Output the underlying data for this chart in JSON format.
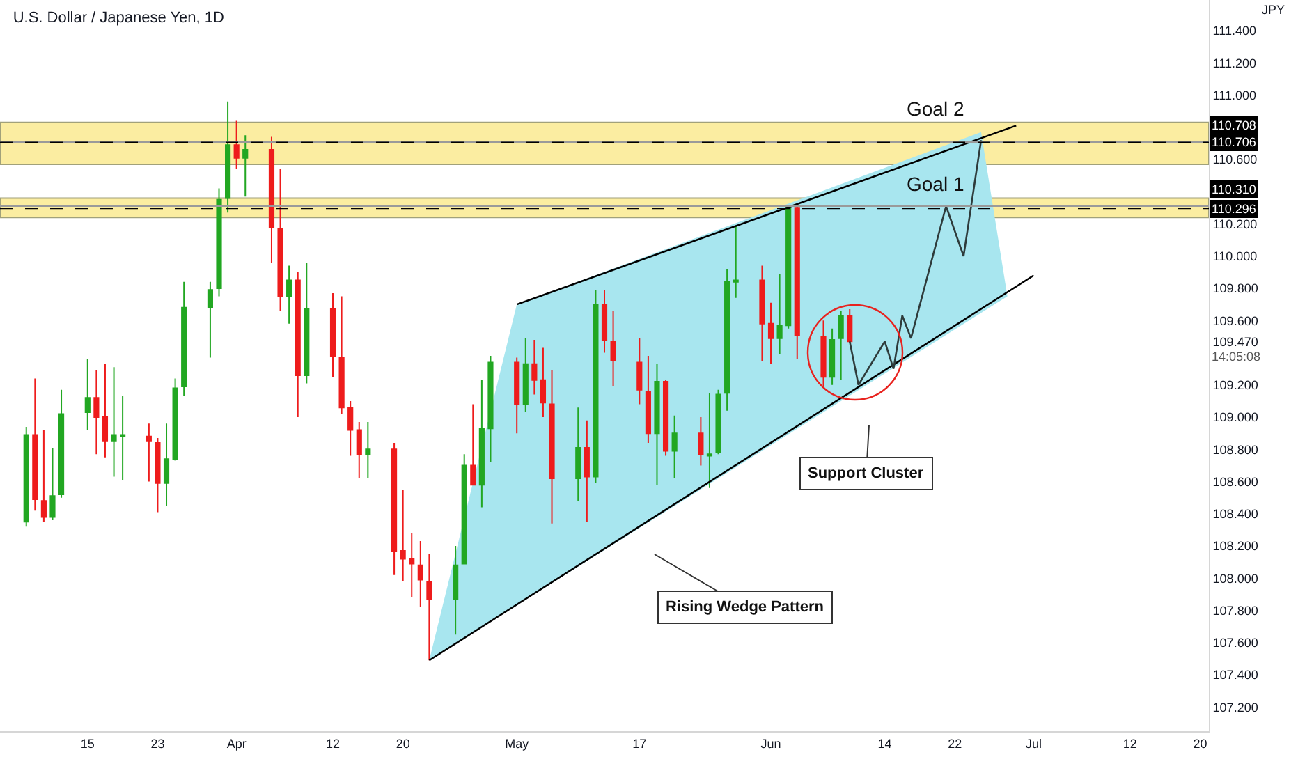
{
  "chart_data": {
    "type": "candlestick",
    "title": "U.S. Dollar / Japanese Yen, 1D",
    "ylabel": "JPY",
    "x": [
      "--03-08",
      "--03-09",
      "--03-10",
      "--03-11",
      "--03-12",
      "--03-15",
      "--03-16",
      "--03-17",
      "--03-18",
      "--03-19",
      "--03-22",
      "--03-23",
      "--03-24",
      "--03-25",
      "--03-26",
      "--03-29",
      "--03-30",
      "--03-31",
      "--04-01",
      "--04-02",
      "--04-05",
      "--04-06",
      "--04-07",
      "--04-08",
      "--04-09",
      "--04-12",
      "--04-13",
      "--04-14",
      "--04-15",
      "--04-16",
      "--04-19",
      "--04-20",
      "--04-21",
      "--04-22",
      "--04-23",
      "--04-26",
      "--04-27",
      "--04-28",
      "--04-29",
      "--04-30",
      "--05-03",
      "--05-04",
      "--05-05",
      "--05-06",
      "--05-07",
      "--05-10",
      "--05-11",
      "--05-12",
      "--05-13",
      "--05-14",
      "--05-17",
      "--05-18",
      "--05-19",
      "--05-20",
      "--05-21",
      "--05-24",
      "--05-25",
      "--05-26",
      "--05-27",
      "--05-28",
      "--05-31",
      "--06-01",
      "--06-02",
      "--06-03",
      "--06-04",
      "--06-07",
      "--06-08",
      "--06-09",
      "--06-10"
    ],
    "ohlc": [
      [
        108.35,
        108.94,
        108.32,
        108.89
      ],
      [
        108.89,
        109.24,
        108.42,
        108.49
      ],
      [
        108.48,
        108.92,
        108.35,
        108.38
      ],
      [
        108.38,
        108.81,
        108.36,
        108.51
      ],
      [
        108.52,
        109.17,
        108.5,
        109.02
      ],
      [
        109.03,
        109.36,
        108.92,
        109.12
      ],
      [
        109.12,
        109.29,
        108.77,
        109.0
      ],
      [
        109.0,
        109.33,
        108.75,
        108.85
      ],
      [
        108.85,
        109.31,
        108.63,
        108.89
      ],
      [
        108.88,
        109.13,
        108.61,
        108.89
      ],
      [
        108.88,
        108.96,
        108.6,
        108.85
      ],
      [
        108.84,
        108.87,
        108.41,
        108.59
      ],
      [
        108.59,
        108.96,
        108.45,
        108.74
      ],
      [
        108.74,
        109.24,
        108.73,
        109.18
      ],
      [
        109.19,
        109.84,
        109.13,
        109.68
      ],
      [
        109.68,
        109.84,
        109.37,
        109.79
      ],
      [
        109.8,
        110.42,
        109.75,
        110.35
      ],
      [
        110.36,
        110.96,
        110.27,
        110.69
      ],
      [
        110.69,
        110.84,
        110.54,
        110.61
      ],
      [
        110.61,
        110.75,
        110.37,
        110.66
      ],
      [
        110.66,
        110.74,
        109.96,
        110.18
      ],
      [
        110.17,
        110.54,
        109.66,
        109.75
      ],
      [
        109.75,
        109.94,
        109.58,
        109.85
      ],
      [
        109.85,
        109.9,
        109.0,
        109.26
      ],
      [
        109.26,
        109.96,
        109.21,
        109.67
      ],
      [
        109.67,
        109.77,
        109.25,
        109.38
      ],
      [
        109.37,
        109.75,
        109.02,
        109.06
      ],
      [
        109.06,
        109.1,
        108.76,
        108.92
      ],
      [
        108.92,
        108.97,
        108.62,
        108.77
      ],
      [
        108.77,
        108.97,
        108.62,
        108.8
      ],
      [
        108.8,
        108.84,
        108.02,
        108.17
      ],
      [
        108.17,
        108.55,
        107.98,
        108.12
      ],
      [
        108.12,
        108.28,
        107.88,
        108.09
      ],
      [
        108.08,
        108.23,
        107.82,
        107.99
      ],
      [
        107.98,
        108.15,
        107.49,
        107.87
      ],
      [
        107.87,
        108.2,
        107.65,
        108.08
      ],
      [
        108.09,
        108.77,
        108.09,
        108.7
      ],
      [
        108.7,
        109.08,
        108.58,
        108.58
      ],
      [
        108.58,
        109.23,
        108.44,
        108.93
      ],
      [
        108.93,
        109.38,
        108.72,
        109.34
      ],
      [
        109.34,
        109.37,
        108.9,
        109.08
      ],
      [
        109.08,
        109.49,
        109.03,
        109.33
      ],
      [
        109.33,
        109.48,
        109.14,
        109.23
      ],
      [
        109.23,
        109.43,
        109.0,
        109.09
      ],
      [
        109.08,
        109.29,
        108.34,
        108.62
      ],
      [
        108.62,
        109.06,
        108.48,
        108.81
      ],
      [
        108.81,
        108.98,
        108.35,
        108.63
      ],
      [
        108.63,
        109.79,
        108.59,
        109.7
      ],
      [
        109.7,
        109.79,
        109.4,
        109.48
      ],
      [
        109.47,
        109.66,
        109.19,
        109.35
      ],
      [
        109.34,
        109.49,
        109.08,
        109.17
      ],
      [
        109.16,
        109.38,
        108.84,
        108.9
      ],
      [
        108.9,
        109.33,
        108.58,
        109.22
      ],
      [
        109.22,
        109.23,
        108.76,
        108.79
      ],
      [
        108.79,
        109.01,
        108.62,
        108.9
      ],
      [
        108.9,
        109.0,
        108.7,
        108.77
      ],
      [
        108.76,
        109.15,
        108.56,
        108.77
      ],
      [
        108.78,
        109.17,
        108.77,
        109.14
      ],
      [
        109.15,
        109.92,
        109.04,
        109.84
      ],
      [
        109.84,
        110.19,
        109.74,
        109.85
      ],
      [
        109.85,
        109.94,
        109.35,
        109.58
      ],
      [
        109.58,
        109.71,
        109.33,
        109.49
      ],
      [
        109.49,
        109.89,
        109.39,
        109.57
      ],
      [
        109.57,
        110.3,
        109.55,
        110.3
      ],
      [
        110.3,
        110.31,
        109.36,
        109.51
      ],
      [
        109.5,
        109.6,
        109.19,
        109.25
      ],
      [
        109.25,
        109.55,
        109.2,
        109.48
      ],
      [
        109.49,
        109.66,
        109.23,
        109.63
      ],
      [
        109.63,
        109.67,
        109.46,
        109.47
      ]
    ],
    "colors": [
      "#22a722",
      "#ee1c1c",
      "#ee1c1c",
      "#22a722",
      "#22a722",
      "#22a722",
      "#ee1c1c",
      "#ee1c1c",
      "#22a722",
      "#22a722",
      "#ee1c1c",
      "#ee1c1c",
      "#22a722",
      "#22a722",
      "#22a722",
      "#22a722",
      "#22a722",
      "#22a722",
      "#ee1c1c",
      "#22a722",
      "#ee1c1c",
      "#ee1c1c",
      "#22a722",
      "#ee1c1c",
      "#22a722",
      "#ee1c1c",
      "#ee1c1c",
      "#ee1c1c",
      "#ee1c1c",
      "#22a722",
      "#ee1c1c",
      "#ee1c1c",
      "#ee1c1c",
      "#ee1c1c",
      "#ee1c1c",
      "#22a722",
      "#22a722",
      "#ee1c1c",
      "#22a722",
      "#22a722",
      "#ee1c1c",
      "#22a722",
      "#ee1c1c",
      "#ee1c1c",
      "#ee1c1c",
      "#22a722",
      "#ee1c1c",
      "#22a722",
      "#ee1c1c",
      "#ee1c1c",
      "#ee1c1c",
      "#ee1c1c",
      "#22a722",
      "#ee1c1c",
      "#22a722",
      "#ee1c1c",
      "#22a722",
      "#22a722",
      "#22a722",
      "#22a722",
      "#ee1c1c",
      "#ee1c1c",
      "#22a722",
      "#22a722",
      "#ee1c1c",
      "#ee1c1c",
      "#22a722",
      "#22a722",
      "#ee1c1c"
    ],
    "series": [
      {
        "type": "area",
        "color": "#a8e6ef",
        "x": [
          "--04-23",
          "--05-03",
          "--06-25",
          "--06-28",
          "--04-23"
        ],
        "values": [
          107.49,
          109.7,
          110.77,
          109.75,
          107.49
        ]
      },
      {
        "type": "line",
        "color": "#000000",
        "x": [
          "--05-03",
          "--06-29"
        ],
        "values": [
          109.7,
          110.81
        ]
      },
      {
        "type": "line",
        "color": "#000000",
        "x": [
          "--04-23",
          "--07-01"
        ],
        "values": [
          107.49,
          109.88
        ]
      },
      {
        "type": "line",
        "color": "#2e3b3b",
        "x": [
          "--06-10",
          "--06-11",
          "--06-14",
          "--06-15",
          "--06-16",
          "--06-17",
          "--06-21",
          "--06-23",
          "--06-25"
        ],
        "values": [
          109.47,
          109.2,
          109.47,
          109.3,
          109.63,
          109.49,
          110.31,
          110.0,
          110.72
        ]
      }
    ],
    "bands": [
      {
        "axis": "y",
        "from": 110.57,
        "to": 110.83,
        "label": "Goal 2",
        "color": "#fbe98a"
      },
      {
        "axis": "y",
        "from": 110.24,
        "to": 110.36,
        "label": "Goal 1",
        "color": "#fbe98a"
      }
    ],
    "ref_lines": [
      {
        "axis": "y",
        "value": 110.708,
        "label": "110.708",
        "line_style": "solid",
        "color": "#9a9a9a"
      },
      {
        "axis": "y",
        "value": 110.706,
        "label": "110.706",
        "line_style": "dashed",
        "color": "#000000"
      },
      {
        "axis": "y",
        "value": 110.31,
        "label": "110.310",
        "line_style": "solid",
        "color": "#9a9a9a"
      },
      {
        "axis": "y",
        "value": 110.296,
        "label": "110.296",
        "line_style": "dashed",
        "color": "#000000"
      }
    ],
    "annotations": [
      "Rising Wedge Pattern",
      "Support Cluster",
      "14:05:08"
    ],
    "xlim": [
      "--03-05",
      "--07-21"
    ],
    "xticks": [
      {
        "value": "--03-15",
        "label": "15"
      },
      {
        "value": "--03-23",
        "label": "23"
      },
      {
        "value": "--04-01",
        "label": "Apr"
      },
      {
        "value": "--04-12",
        "label": "12"
      },
      {
        "value": "--04-20",
        "label": "20"
      },
      {
        "value": "--05-03",
        "label": "May"
      },
      {
        "value": "--05-17",
        "label": "17"
      },
      {
        "value": "--06-01",
        "label": "Jun"
      },
      {
        "value": "--06-14",
        "label": "14"
      },
      {
        "value": "--06-22",
        "label": "22"
      },
      {
        "value": "--07-01",
        "label": "Jul"
      },
      {
        "value": "--07-12",
        "label": "12"
      },
      {
        "value": "--07-20",
        "label": "20"
      }
    ],
    "ylim": [
      107.05,
      111.59
    ],
    "yticks": [
      {
        "value": 107.2,
        "label": "107.200"
      },
      {
        "value": 107.4,
        "label": "107.400"
      },
      {
        "value": 107.6,
        "label": "107.600"
      },
      {
        "value": 107.8,
        "label": "107.800"
      },
      {
        "value": 108.0,
        "label": "108.000"
      },
      {
        "value": 108.2,
        "label": "108.200"
      },
      {
        "value": 108.4,
        "label": "108.400"
      },
      {
        "value": 108.6,
        "label": "108.600"
      },
      {
        "value": 108.8,
        "label": "108.800"
      },
      {
        "value": 109.0,
        "label": "109.000"
      },
      {
        "value": 109.2,
        "label": "109.200"
      },
      {
        "value": 109.47,
        "label": "109.470"
      },
      {
        "value": 109.6,
        "label": "109.600"
      },
      {
        "value": 109.8,
        "label": "109.800"
      },
      {
        "value": 110.0,
        "label": "110.000"
      },
      {
        "value": 110.2,
        "label": "110.200"
      },
      {
        "value": 110.6,
        "label": "110.600"
      },
      {
        "value": 111.0,
        "label": "111.000"
      },
      {
        "value": 111.2,
        "label": "111.200"
      },
      {
        "value": 111.4,
        "label": "111.400"
      }
    ]
  }
}
